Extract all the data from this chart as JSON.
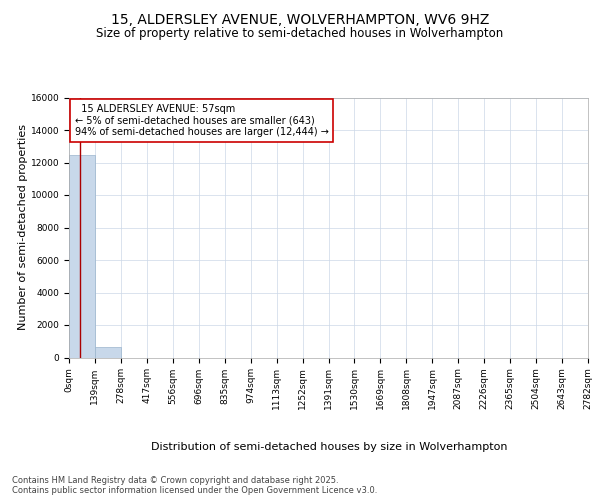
{
  "title": "15, ALDERSLEY AVENUE, WOLVERHAMPTON, WV6 9HZ",
  "subtitle": "Size of property relative to semi-detached houses in Wolverhampton",
  "xlabel": "Distribution of semi-detached houses by size in Wolverhampton",
  "ylabel": "Number of semi-detached properties",
  "property_size": 57,
  "property_label": "15 ALDERSLEY AVENUE: 57sqm",
  "pct_smaller": 5,
  "n_smaller": 643,
  "pct_larger": 94,
  "n_larger": 12444,
  "bar_color": "#c8d8ea",
  "bar_edge_color": "#9ab4cc",
  "vline_color": "#aa0000",
  "annotation_box_edge": "#cc0000",
  "background_color": "#ffffff",
  "grid_color": "#ccd8e8",
  "bin_edges": [
    0,
    139,
    278,
    417,
    556,
    696,
    835,
    974,
    1113,
    1252,
    1391,
    1530,
    1669,
    1808,
    1947,
    2087,
    2226,
    2365,
    2504,
    2643,
    2782
  ],
  "bin_labels": [
    "0sqm",
    "139sqm",
    "278sqm",
    "417sqm",
    "556sqm",
    "696sqm",
    "835sqm",
    "974sqm",
    "1113sqm",
    "1252sqm",
    "1391sqm",
    "1530sqm",
    "1669sqm",
    "1808sqm",
    "1947sqm",
    "2087sqm",
    "2226sqm",
    "2365sqm",
    "2504sqm",
    "2643sqm",
    "2782sqm"
  ],
  "bar_heights": [
    12444,
    643,
    0,
    0,
    0,
    0,
    0,
    0,
    0,
    0,
    0,
    0,
    0,
    0,
    0,
    0,
    0,
    0,
    0,
    0
  ],
  "ylim": [
    0,
    16000
  ],
  "yticks": [
    0,
    2000,
    4000,
    6000,
    8000,
    10000,
    12000,
    14000,
    16000
  ],
  "footnote": "Contains HM Land Registry data © Crown copyright and database right 2025.\nContains public sector information licensed under the Open Government Licence v3.0.",
  "title_fontsize": 10,
  "subtitle_fontsize": 8.5,
  "ylabel_fontsize": 8,
  "xlabel_fontsize": 8,
  "tick_fontsize": 6.5,
  "annotation_fontsize": 7,
  "footnote_fontsize": 6
}
